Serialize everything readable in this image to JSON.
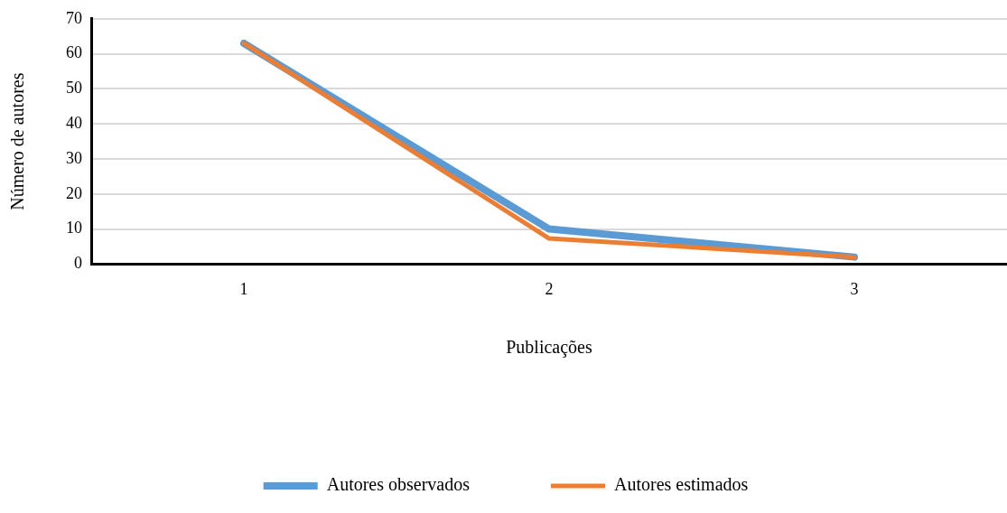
{
  "chart_data": {
    "type": "line",
    "xlabel": "Publicações",
    "ylabel": "Número de autores",
    "categories": [
      "1",
      "2",
      "3"
    ],
    "series": [
      {
        "name": "Autores observados",
        "color": "#5b9bd5",
        "values": [
          63,
          10,
          2
        ]
      },
      {
        "name": "Autores estimados",
        "color": "#ed7d31",
        "values": [
          63,
          7.3,
          2
        ]
      }
    ],
    "ylim": [
      0,
      70
    ],
    "yticks": [
      0,
      10,
      20,
      30,
      40,
      50,
      60,
      70
    ],
    "grid": "y",
    "legend": "bottom",
    "marker": "none",
    "line_style": "solid"
  }
}
